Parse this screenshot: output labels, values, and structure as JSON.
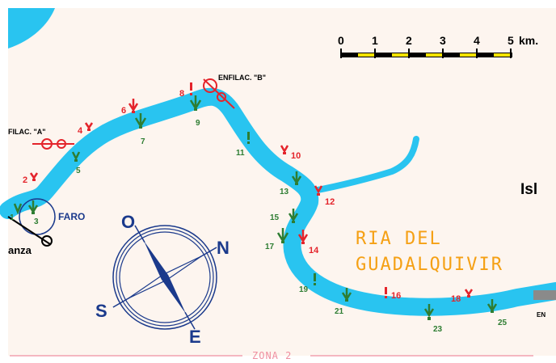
{
  "scale": {
    "ticks": [
      "0",
      "1",
      "2",
      "3",
      "4",
      "5"
    ],
    "unit": "km."
  },
  "place_labels": {
    "ria_line1": "RIA DEL",
    "ria_line2": "GUADALQUIVIR",
    "isl": "Isl",
    "faro": "FARO",
    "anza": "anza",
    "enfilac_a": "FILAC. \"A\"",
    "enfilac_b": "ENFILAC. \"B\"",
    "en_right": "EN"
  },
  "compass": {
    "north": "N",
    "south": "S",
    "east": "E",
    "west": "O"
  },
  "zone_label": "ZONA 2",
  "markers": {
    "red": [
      "2",
      "4",
      "6",
      "8",
      "10",
      "12",
      "14",
      "16",
      "18"
    ],
    "green": [
      "1",
      "3",
      "5",
      "7",
      "9",
      "11",
      "13",
      "15",
      "17",
      "19",
      "21",
      "23",
      "25"
    ]
  },
  "colors": {
    "water": "#29c4f0",
    "land": "#fdf5ef",
    "red_marker": "#e4242b",
    "green_marker": "#2e7d32",
    "compass": "#1b3a8c",
    "river_name": "#f5a014",
    "zone_line": "#ef8fa0"
  }
}
